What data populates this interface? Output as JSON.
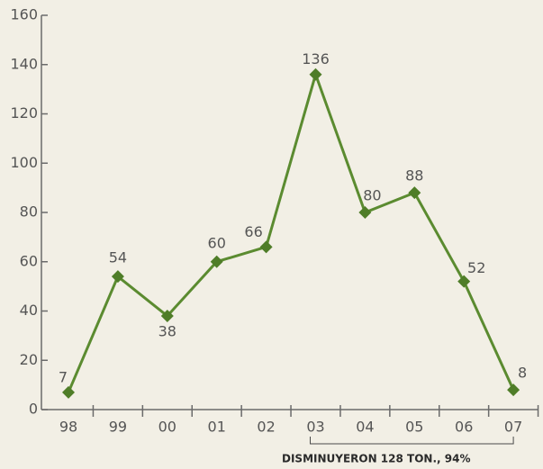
{
  "chart_data": {
    "type": "line",
    "categories": [
      "98",
      "99",
      "00",
      "01",
      "02",
      "03",
      "04",
      "05",
      "06",
      "07"
    ],
    "values": [
      7,
      54,
      38,
      60,
      66,
      136,
      80,
      88,
      52,
      8
    ],
    "color": "#5b8b30",
    "marker_color": "#4f7d28",
    "ylim": [
      0,
      160
    ],
    "yticks": [
      0,
      20,
      40,
      60,
      80,
      100,
      120,
      140,
      160
    ],
    "annotation": "DISMINUYERON 128 TON., 94%"
  }
}
